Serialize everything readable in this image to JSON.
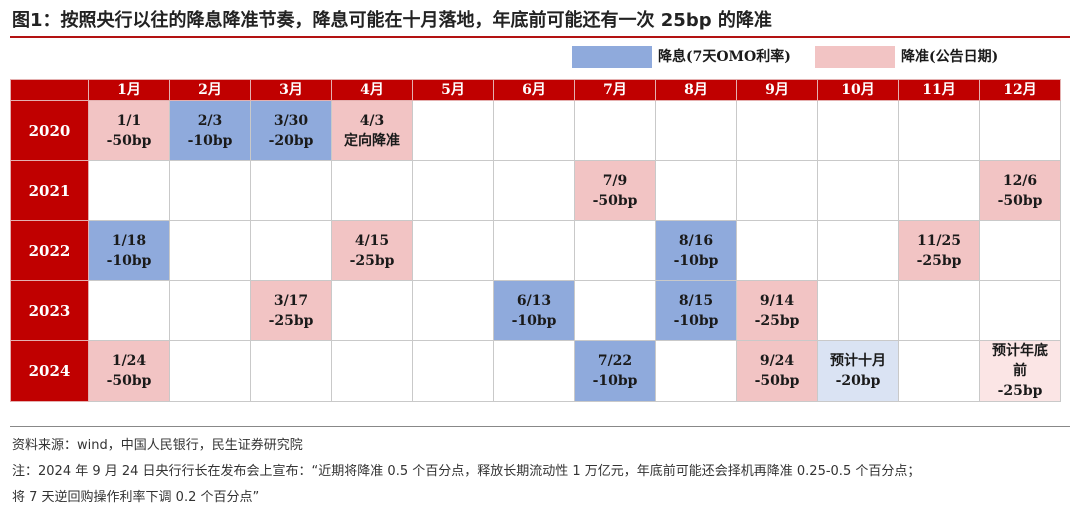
{
  "title": "图1：按照央行以往的降息降准节奏，降息可能在十月落地，年底前可能还有一次 25bp 的降准",
  "legend": {
    "cut": "降息(7天OMO利率)",
    "rrr": "降准(公告日期)",
    "colors": {
      "cut": "#8faadc",
      "rrr": "#f2c4c4",
      "forecast_cut": "#dae3f3",
      "forecast_rrr": "#fbe5e5",
      "header": "#c00000"
    }
  },
  "months": [
    "1月",
    "2月",
    "3月",
    "4月",
    "5月",
    "6月",
    "7月",
    "8月",
    "9月",
    "10月",
    "11月",
    "12月"
  ],
  "rows": [
    {
      "year": "2020",
      "cells": [
        {
          "text": [
            "1/1",
            "-50bp"
          ],
          "type": "rrr"
        },
        {
          "text": [
            "2/3",
            "-10bp"
          ],
          "type": "cut"
        },
        {
          "text": [
            "3/30",
            "-20bp"
          ],
          "type": "cut"
        },
        {
          "text": [
            "4/3",
            "定向降准"
          ],
          "type": "rrr"
        },
        {
          "text": [],
          "type": ""
        },
        {
          "text": [],
          "type": ""
        },
        {
          "text": [],
          "type": ""
        },
        {
          "text": [],
          "type": ""
        },
        {
          "text": [],
          "type": ""
        },
        {
          "text": [],
          "type": ""
        },
        {
          "text": [],
          "type": ""
        },
        {
          "text": [],
          "type": ""
        }
      ]
    },
    {
      "year": "2021",
      "cells": [
        {
          "text": [],
          "type": ""
        },
        {
          "text": [],
          "type": ""
        },
        {
          "text": [],
          "type": ""
        },
        {
          "text": [],
          "type": ""
        },
        {
          "text": [],
          "type": ""
        },
        {
          "text": [],
          "type": ""
        },
        {
          "text": [
            "7/9",
            "-50bp"
          ],
          "type": "rrr"
        },
        {
          "text": [],
          "type": ""
        },
        {
          "text": [],
          "type": ""
        },
        {
          "text": [],
          "type": ""
        },
        {
          "text": [],
          "type": ""
        },
        {
          "text": [
            "12/6",
            "-50bp"
          ],
          "type": "rrr"
        }
      ]
    },
    {
      "year": "2022",
      "cells": [
        {
          "text": [
            "1/18",
            "-10bp"
          ],
          "type": "cut"
        },
        {
          "text": [],
          "type": ""
        },
        {
          "text": [],
          "type": ""
        },
        {
          "text": [
            "4/15",
            "-25bp"
          ],
          "type": "rrr"
        },
        {
          "text": [],
          "type": ""
        },
        {
          "text": [],
          "type": ""
        },
        {
          "text": [],
          "type": ""
        },
        {
          "text": [
            "8/16",
            "-10bp"
          ],
          "type": "cut"
        },
        {
          "text": [],
          "type": ""
        },
        {
          "text": [],
          "type": ""
        },
        {
          "text": [
            "11/25",
            "-25bp"
          ],
          "type": "rrr"
        },
        {
          "text": [],
          "type": ""
        }
      ]
    },
    {
      "year": "2023",
      "cells": [
        {
          "text": [],
          "type": ""
        },
        {
          "text": [],
          "type": ""
        },
        {
          "text": [
            "3/17",
            "-25bp"
          ],
          "type": "rrr"
        },
        {
          "text": [],
          "type": ""
        },
        {
          "text": [],
          "type": ""
        },
        {
          "text": [
            "6/13",
            "-10bp"
          ],
          "type": "cut"
        },
        {
          "text": [],
          "type": ""
        },
        {
          "text": [
            "8/15",
            "-10bp"
          ],
          "type": "cut"
        },
        {
          "text": [
            "9/14",
            "-25bp"
          ],
          "type": "rrr"
        },
        {
          "text": [],
          "type": ""
        },
        {
          "text": [],
          "type": ""
        },
        {
          "text": [],
          "type": ""
        }
      ]
    },
    {
      "year": "2024",
      "cells": [
        {
          "text": [
            "1/24",
            "-50bp"
          ],
          "type": "rrr"
        },
        {
          "text": [],
          "type": ""
        },
        {
          "text": [],
          "type": ""
        },
        {
          "text": [],
          "type": ""
        },
        {
          "text": [],
          "type": ""
        },
        {
          "text": [],
          "type": ""
        },
        {
          "text": [
            "7/22",
            "-10bp"
          ],
          "type": "cut"
        },
        {
          "text": [],
          "type": ""
        },
        {
          "text": [
            "9/24",
            "-50bp"
          ],
          "type": "rrr"
        },
        {
          "text": [
            "预计十月",
            "-20bp"
          ],
          "type": "fcut"
        },
        {
          "text": [],
          "type": ""
        },
        {
          "text": [
            "预计年底",
            "前",
            "-25bp"
          ],
          "type": "frrr"
        }
      ]
    }
  ],
  "source": "资料来源：wind，中国人民银行，民生证券研究院",
  "note_line1": "注：2024 年 9 月 24 日央行行长在发布会上宣布：“近期将降准 0.5 个百分点，释放长期流动性 1 万亿元，年底前可能还会择机再降准 0.25-0.5 个百分点；",
  "note_line2": "将 7 天逆回购操作利率下调 0.2 个百分点”"
}
